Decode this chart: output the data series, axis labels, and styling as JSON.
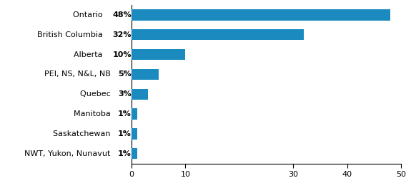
{
  "categories": [
    "NWT, Yukon, Nunavut 1%",
    "Saskatchewan 1%",
    "Manitoba 1%",
    "Quebec 3%",
    "PEI, NS, N&L, NB 5%",
    "Alberta 10%",
    "British Columbia 32%",
    "Ontario 48%"
  ],
  "label_normal": [
    "NWT, Yukon, Nunavut ",
    "Saskatchewan ",
    "Manitoba ",
    "Quebec ",
    "PEI, NS, N&L, NB ",
    "Alberta ",
    "British Columbia ",
    "Ontario "
  ],
  "label_bold": [
    "1%",
    "1%",
    "1%",
    "3%",
    "5%",
    "10%",
    "32%",
    "48%"
  ],
  "values": [
    1,
    1,
    1,
    3,
    5,
    10,
    32,
    48
  ],
  "bar_color": "#1a8abf",
  "background_color": "#ffffff",
  "xlim": [
    0,
    50
  ],
  "xticks": [
    0,
    10,
    30,
    40,
    50
  ],
  "bar_height": 0.55,
  "figsize": [
    5.75,
    2.57
  ],
  "dpi": 100
}
